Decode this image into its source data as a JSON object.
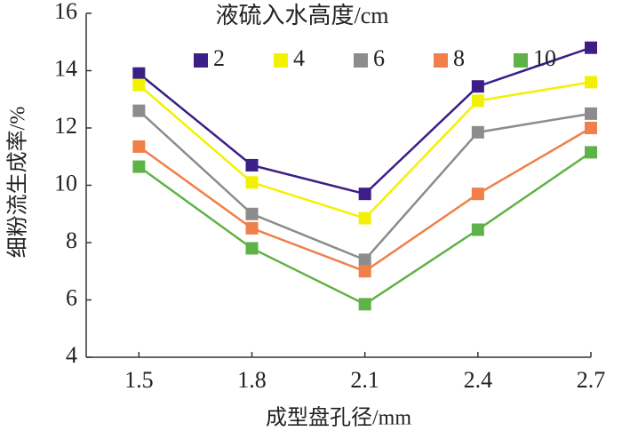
{
  "chart_data": {
    "type": "line",
    "legend_title": "液硫入水高度/cm",
    "x_label": "成型盘孔径/mm",
    "y_label": "细粉流生成率/%",
    "x": [
      1.5,
      1.8,
      2.1,
      2.4,
      2.7
    ],
    "xlim": [
      1.36,
      2.7
    ],
    "xticks": [
      1.5,
      1.8,
      2.1,
      2.4,
      2.7
    ],
    "ylim": [
      4,
      16
    ],
    "yticks": [
      4,
      6,
      8,
      10,
      12,
      14,
      16
    ],
    "series": [
      {
        "name": "2",
        "color": "#3b1e87",
        "values": [
          13.9,
          10.7,
          9.7,
          13.45,
          14.8
        ]
      },
      {
        "name": "4",
        "color": "#f2f200",
        "values": [
          13.5,
          10.1,
          8.85,
          12.95,
          13.6
        ]
      },
      {
        "name": "6",
        "color": "#8c8c8c",
        "values": [
          12.6,
          9.0,
          7.4,
          11.85,
          12.5
        ]
      },
      {
        "name": "8",
        "color": "#f07f4a",
        "values": [
          11.35,
          8.5,
          7.0,
          9.7,
          12.0
        ]
      },
      {
        "name": "10",
        "color": "#5eb346",
        "values": [
          10.65,
          7.8,
          5.85,
          8.45,
          11.15
        ]
      }
    ]
  }
}
